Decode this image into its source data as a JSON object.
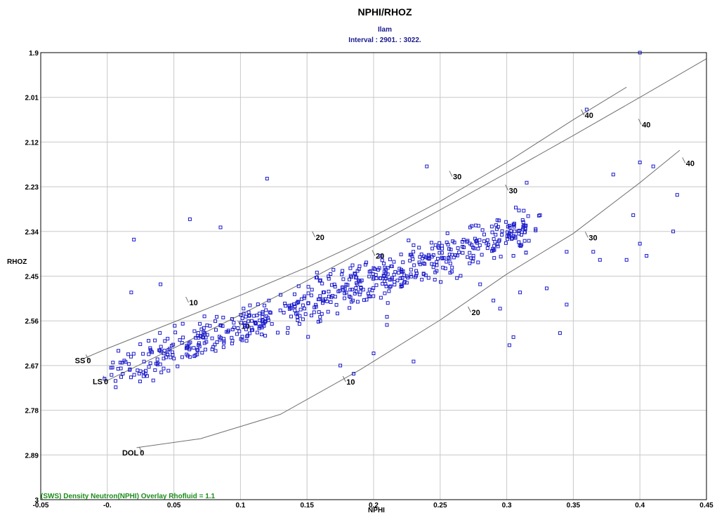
{
  "colors": {
    "points": "#1a1acc",
    "subtitle": "#1a1a8c",
    "note": "#1a8c1a",
    "grid": "#c8c8c8",
    "curve": "#707070"
  },
  "chart_data": {
    "type": "scatter",
    "title": "NPHI/RHOZ",
    "subtitle_well": "Ilam",
    "subtitle_interval": "Interval : 2901. : 3022.",
    "xlabel": "NPHI",
    "ylabel": "RHOZ",
    "xlim": [
      -0.05,
      0.45
    ],
    "ylim": [
      1.9,
      3.0
    ],
    "y_inverted": true,
    "grid": true,
    "x_ticks": [
      "-0.05",
      "-0.",
      "0.05",
      "0.1",
      "0.15",
      "0.2",
      "0.25",
      "0.3",
      "0.35",
      "0.4",
      "0.45"
    ],
    "x_tick_values": [
      -0.05,
      0.0,
      0.05,
      0.1,
      0.15,
      0.2,
      0.25,
      0.3,
      0.35,
      0.4,
      0.45
    ],
    "y_ticks": [
      "1.9",
      "2.01",
      "2.12",
      "2.23",
      "2.34",
      "2.45",
      "2.56",
      "2.67",
      "2.78",
      "2.89",
      "3"
    ],
    "y_tick_values": [
      1.9,
      2.01,
      2.12,
      2.23,
      2.34,
      2.45,
      2.56,
      2.67,
      2.78,
      2.89,
      3.0
    ],
    "overlay_note": "(SWS) Density Neutron(NPHI) Overlay Rhofluid = 1.1",
    "overlay_curves": [
      {
        "name": "SS",
        "label": "SS",
        "points": [
          [
            -0.018,
            2.653
          ],
          [
            0.0,
            2.628
          ],
          [
            0.05,
            2.563
          ],
          [
            0.1,
            2.497
          ],
          [
            0.15,
            2.428
          ],
          [
            0.2,
            2.352
          ],
          [
            0.25,
            2.266
          ],
          [
            0.3,
            2.17
          ],
          [
            0.35,
            2.065
          ],
          [
            0.39,
            1.985
          ]
        ],
        "markers": [
          {
            "x": -0.015,
            "y": 2.65,
            "label": "0"
          },
          {
            "x": 0.06,
            "y": 2.508,
            "label": "10"
          },
          {
            "x": 0.155,
            "y": 2.347,
            "label": "20"
          },
          {
            "x": 0.258,
            "y": 2.198,
            "label": "30"
          },
          {
            "x": 0.357,
            "y": 2.047,
            "label": "40"
          }
        ]
      },
      {
        "name": "LS",
        "label": "LS",
        "points": [
          [
            -0.002,
            2.71
          ],
          [
            0.05,
            2.627
          ],
          [
            0.1,
            2.545
          ],
          [
            0.15,
            2.461
          ],
          [
            0.2,
            2.375
          ],
          [
            0.25,
            2.287
          ],
          [
            0.3,
            2.196
          ],
          [
            0.35,
            2.104
          ],
          [
            0.4,
            2.01
          ],
          [
            0.45,
            1.915
          ]
        ],
        "markers": [
          {
            "x": -0.002,
            "y": 2.702,
            "label": "0"
          },
          {
            "x": 0.099,
            "y": 2.566,
            "label": "10"
          },
          {
            "x": 0.2,
            "y": 2.393,
            "label": "20"
          },
          {
            "x": 0.3,
            "y": 2.232,
            "label": "30"
          },
          {
            "x": 0.4,
            "y": 2.07,
            "label": "40"
          }
        ]
      },
      {
        "name": "DOL",
        "label": "DOL",
        "points": [
          [
            0.022,
            2.872
          ],
          [
            0.07,
            2.85
          ],
          [
            0.13,
            2.79
          ],
          [
            0.19,
            2.68
          ],
          [
            0.25,
            2.558
          ],
          [
            0.3,
            2.445
          ],
          [
            0.35,
            2.345
          ],
          [
            0.4,
            2.22
          ],
          [
            0.43,
            2.14
          ]
        ],
        "markers": [
          {
            "x": 0.025,
            "y": 2.877,
            "label": "0"
          },
          {
            "x": 0.178,
            "y": 2.703,
            "label": "10"
          },
          {
            "x": 0.272,
            "y": 2.532,
            "label": "20"
          },
          {
            "x": 0.36,
            "y": 2.348,
            "label": "30"
          },
          {
            "x": 0.433,
            "y": 2.165,
            "label": "40"
          }
        ]
      }
    ],
    "scatter_count": 640,
    "scatter_trend": {
      "x_range": [
        0.0,
        0.32
      ],
      "rhoz_at_0": 2.69,
      "slope": -1.15,
      "spread_rhoz": 0.045
    },
    "outliers": [
      [
        0.02,
        2.36
      ],
      [
        0.018,
        2.49
      ],
      [
        0.062,
        2.31
      ],
      [
        0.085,
        2.33
      ],
      [
        0.12,
        2.21
      ],
      [
        0.04,
        2.47
      ],
      [
        0.24,
        2.18
      ],
      [
        0.4,
        1.9
      ],
      [
        0.36,
        2.04
      ],
      [
        0.38,
        2.2
      ],
      [
        0.4,
        2.17
      ],
      [
        0.41,
        2.18
      ],
      [
        0.425,
        2.34
      ],
      [
        0.428,
        2.25
      ],
      [
        0.395,
        2.3
      ],
      [
        0.4,
        2.37
      ],
      [
        0.365,
        2.39
      ],
      [
        0.37,
        2.41
      ],
      [
        0.39,
        2.41
      ],
      [
        0.405,
        2.4
      ],
      [
        0.345,
        2.52
      ],
      [
        0.34,
        2.59
      ],
      [
        0.33,
        2.48
      ],
      [
        0.305,
        2.6
      ],
      [
        0.302,
        2.62
      ],
      [
        0.31,
        2.49
      ],
      [
        0.28,
        2.47
      ],
      [
        0.29,
        2.51
      ],
      [
        0.295,
        2.53
      ],
      [
        0.23,
        2.66
      ],
      [
        0.2,
        2.64
      ],
      [
        0.185,
        2.69
      ],
      [
        0.175,
        2.67
      ],
      [
        0.345,
        2.39
      ],
      [
        0.315,
        2.22
      ],
      [
        0.325,
        2.3
      ],
      [
        0.2,
        2.43
      ],
      [
        0.21,
        2.55
      ],
      [
        0.21,
        2.57
      ],
      [
        0.305,
        2.4
      ]
    ]
  }
}
